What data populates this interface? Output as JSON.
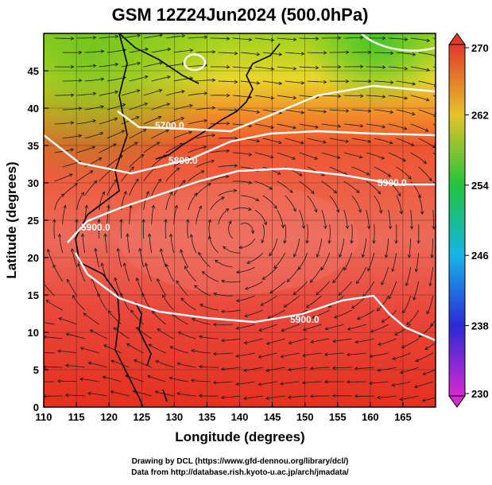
{
  "title": "GSM 12Z24Jun2024 (500.0hPa)",
  "x_axis": {
    "label": "Longitude (degrees)",
    "ticks": [
      "110",
      "115",
      "120",
      "125",
      "130",
      "135",
      "140",
      "145",
      "150",
      "155",
      "160",
      "165"
    ]
  },
  "y_axis": {
    "label": "Latitude  (degrees)",
    "ticks": [
      "0",
      "5",
      "10",
      "15",
      "20",
      "25",
      "30",
      "35",
      "40",
      "45"
    ]
  },
  "colorbar": {
    "labels": [
      "230",
      "238",
      "246",
      "254",
      "262",
      "270"
    ],
    "colors": [
      "#d62ad0",
      "#2a2ad6",
      "#16b4e6",
      "#22c43c",
      "#e7c22a",
      "#e03a2a"
    ]
  },
  "contours": [
    {
      "label": "5700.0"
    },
    {
      "label": "5800.0"
    },
    {
      "label": "5900.0"
    },
    {
      "label": "5900.0"
    },
    {
      "label": "5900.0"
    }
  ],
  "credits": {
    "line1": "Drawing by DCL (https://www.gfd-dennou.org/library/dcl/)",
    "line2": "Data from http://database.rish.kyoto-u.ac.jp/arch/jmadata/"
  },
  "chart_data": {
    "type": "heatmap",
    "title": "GSM 12Z24Jun2024 (500.0hPa)",
    "xlabel": "Longitude (degrees)",
    "ylabel": "Latitude  (degrees)",
    "xlim": [
      110,
      170
    ],
    "ylim": [
      0,
      50
    ],
    "color_range": [
      230,
      270
    ],
    "contour_levels": [
      5700,
      5800,
      5900
    ],
    "grid": true,
    "legend": "right colorbar"
  }
}
